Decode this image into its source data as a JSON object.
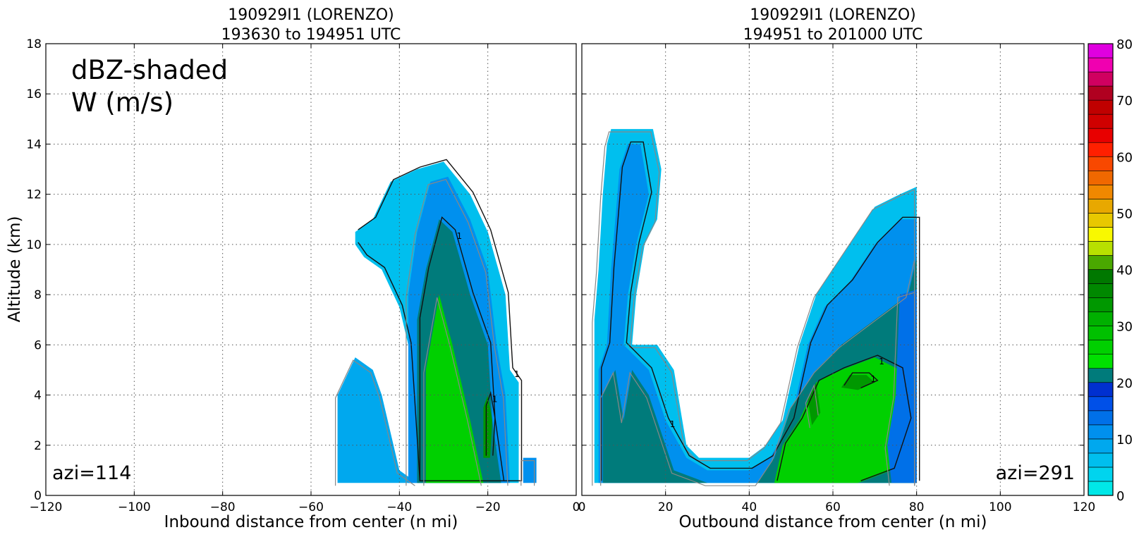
{
  "chart_data": [
    {
      "type": "heatmap",
      "title": "190929I1 (LORENZO)",
      "subtitle": "193630 to 194951 UTC",
      "xlabel": "Inbound distance from center (n mi)",
      "ylabel": "Altitude (km)",
      "xlim": [
        -120,
        0
      ],
      "ylim": [
        0,
        18
      ],
      "xticks": [
        -120,
        -100,
        -80,
        -60,
        -40,
        -20,
        0
      ],
      "yticks": [
        0,
        2,
        4,
        6,
        8,
        10,
        12,
        14,
        16,
        18
      ],
      "grid": true,
      "annotations": [
        "dBZ-shaded",
        "W (m/s)"
      ],
      "corner_label": "azi=114",
      "contour_label": "1",
      "reflectivity_regions": [
        {
          "dbz": 8,
          "poly": [
            [
              -54,
              0.5
            ],
            [
              -54,
              4
            ],
            [
              -50,
              5.5
            ],
            [
              -46,
              5
            ],
            [
              -44,
              4
            ],
            [
              -40,
              1
            ],
            [
              -36,
              0.5
            ]
          ]
        },
        {
          "dbz": 5,
          "poly": [
            [
              -50,
              10.5
            ],
            [
              -46,
              11
            ],
            [
              -42,
              12.5
            ],
            [
              -36,
              13
            ],
            [
              -30,
              13.3
            ],
            [
              -24,
              12
            ],
            [
              -20,
              10.5
            ],
            [
              -16,
              8
            ],
            [
              -15,
              5
            ],
            [
              -13,
              4.5
            ],
            [
              -13,
              0.5
            ],
            [
              -36,
              0.5
            ],
            [
              -38,
              6
            ],
            [
              -40,
              7.5
            ],
            [
              -44,
              9
            ],
            [
              -48,
              9.5
            ],
            [
              -50,
              10
            ]
          ]
        },
        {
          "dbz": 12,
          "poly": [
            [
              -38,
              0.5
            ],
            [
              -38,
              8
            ],
            [
              -36,
              10.5
            ],
            [
              -33,
              12.5
            ],
            [
              -29,
              12.7
            ],
            [
              -24,
              11
            ],
            [
              -20,
              9
            ],
            [
              -18,
              6
            ],
            [
              -16,
              4
            ],
            [
              -15,
              0.5
            ]
          ]
        },
        {
          "dbz": 20,
          "poly": [
            [
              -36,
              0.5
            ],
            [
              -36,
              7
            ],
            [
              -34,
              9
            ],
            [
              -31,
              11
            ],
            [
              -28,
              10.5
            ],
            [
              -24,
              8
            ],
            [
              -20,
              6
            ],
            [
              -19,
              3
            ],
            [
              -17,
              0.5
            ]
          ]
        },
        {
          "dbz": 26,
          "poly": [
            [
              -34,
              0.5
            ],
            [
              -34,
              5
            ],
            [
              -31,
              8
            ],
            [
              -28,
              6
            ],
            [
              -24,
              3
            ],
            [
              -21,
              0.5
            ]
          ]
        },
        {
          "dbz": 33,
          "poly": [
            [
              -21,
              1.5
            ],
            [
              -21,
              3.5
            ],
            [
              -20,
              4
            ],
            [
              -19,
              3
            ],
            [
              -19.5,
              1.5
            ]
          ]
        },
        {
          "dbz": 10,
          "poly": [
            [
              -12,
              0.5
            ],
            [
              -12,
              1.5
            ],
            [
              -9,
              1.5
            ],
            [
              -9,
              0.5
            ]
          ]
        }
      ]
    },
    {
      "type": "heatmap",
      "title": "190929I1 (LORENZO)",
      "subtitle": "194951 to 201000 UTC",
      "xlabel": "Outbound distance from center (n mi)",
      "ylabel": "",
      "xlim": [
        0,
        120
      ],
      "ylim": [
        0,
        18
      ],
      "xticks": [
        0,
        20,
        40,
        60,
        80,
        100,
        120
      ],
      "yticks": [
        0,
        2,
        4,
        6,
        8,
        10,
        12,
        14,
        16,
        18
      ],
      "grid": true,
      "corner_label": "azi=291",
      "contour_label": "1",
      "reflectivity_regions": [
        {
          "dbz": 5,
          "poly": [
            [
              3,
              0.5
            ],
            [
              3,
              7
            ],
            [
              4,
              9
            ],
            [
              5,
              12
            ],
            [
              6,
              14
            ],
            [
              7,
              14.6
            ],
            [
              12,
              14.6
            ],
            [
              17,
              14.6
            ],
            [
              19,
              13
            ],
            [
              18,
              11
            ],
            [
              15,
              10
            ],
            [
              13,
              8
            ],
            [
              12,
              6
            ],
            [
              18,
              6
            ],
            [
              22,
              5
            ],
            [
              25,
              2
            ],
            [
              28,
              1.5
            ],
            [
              34,
              1.5
            ],
            [
              40,
              1.5
            ],
            [
              44,
              2
            ],
            [
              48,
              3
            ],
            [
              52,
              6
            ],
            [
              56,
              8
            ],
            [
              62,
              9.5
            ],
            [
              66,
              10.5
            ],
            [
              70,
              11.5
            ],
            [
              76,
              12
            ],
            [
              80,
              12.3
            ],
            [
              80,
              0.5
            ]
          ]
        },
        {
          "dbz": 12,
          "poly": [
            [
              4,
              0.5
            ],
            [
              4,
              5
            ],
            [
              6,
              6
            ],
            [
              7,
              9
            ],
            [
              8,
              11
            ],
            [
              9,
              13
            ],
            [
              11,
              14
            ],
            [
              14,
              14
            ],
            [
              16,
              12
            ],
            [
              13,
              10
            ],
            [
              11,
              8
            ],
            [
              10,
              6
            ],
            [
              16,
              5
            ],
            [
              20,
              3
            ],
            [
              25,
              1.5
            ],
            [
              30,
              1
            ],
            [
              40,
              1
            ],
            [
              45,
              1.5
            ],
            [
              50,
              3
            ],
            [
              54,
              6
            ],
            [
              58,
              7.5
            ],
            [
              64,
              8.5
            ],
            [
              70,
              10
            ],
            [
              76,
              11
            ],
            [
              80,
              11
            ],
            [
              80,
              0.5
            ]
          ]
        },
        {
          "dbz": 20,
          "poly": [
            [
              5,
              0.5
            ],
            [
              5,
              4
            ],
            [
              8,
              5
            ],
            [
              10,
              3
            ],
            [
              12,
              5
            ],
            [
              16,
              4
            ],
            [
              22,
              1
            ],
            [
              30,
              0.5
            ],
            [
              42,
              0.5
            ],
            [
              46,
              1.5
            ],
            [
              50,
              3.5
            ],
            [
              56,
              5
            ],
            [
              62,
              6
            ],
            [
              70,
              7
            ],
            [
              78,
              8
            ],
            [
              80,
              9.5
            ],
            [
              80,
              0.5
            ]
          ]
        },
        {
          "dbz": 26,
          "poly": [
            [
              46,
              0.5
            ],
            [
              48,
              2
            ],
            [
              52,
              3
            ],
            [
              56,
              4.5
            ],
            [
              62,
              5
            ],
            [
              70,
              5.5
            ],
            [
              76,
              5
            ],
            [
              78,
              3
            ],
            [
              74,
              1
            ],
            [
              66,
              0.5
            ]
          ]
        },
        {
          "dbz": 33,
          "poly": [
            [
              55,
              2.8
            ],
            [
              54,
              3.8
            ],
            [
              56,
              4.5
            ],
            [
              57,
              3.3
            ]
          ]
        },
        {
          "dbz": 33,
          "poly": [
            [
              62,
              4.3
            ],
            [
              64,
              4.8
            ],
            [
              68,
              4.8
            ],
            [
              70,
              4.5
            ],
            [
              66,
              4.2
            ]
          ]
        },
        {
          "dbz": 14,
          "poly": [
            [
              74,
              0.5
            ],
            [
              73,
              2
            ],
            [
              75,
              4
            ],
            [
              76,
              8
            ],
            [
              80,
              8.2
            ],
            [
              80,
              0.5
            ]
          ]
        }
      ]
    }
  ],
  "colorbar": {
    "ticks": [
      0,
      10,
      20,
      30,
      40,
      50,
      60,
      70,
      80
    ],
    "step": 2.5,
    "colors": [
      "#00e8e8",
      "#00d4ee",
      "#00bfee",
      "#00a8ee",
      "#0090ee",
      "#0070e8",
      "#0050e8",
      "#0030d0",
      "#007b7b",
      "#00e000",
      "#00d000",
      "#00c000",
      "#00b000",
      "#009800",
      "#008800",
      "#007800",
      "#4aa800",
      "#b8e000",
      "#f8f800",
      "#e8c800",
      "#e8a800",
      "#f08800",
      "#f06800",
      "#f84800",
      "#ff2000",
      "#e80000",
      "#d00000",
      "#c00000",
      "#b00020",
      "#d00060",
      "#f000b0",
      "#e000e0",
      "#c040d0",
      "#a040c0",
      "#7838a0",
      "#402050",
      "#000000"
    ]
  }
}
